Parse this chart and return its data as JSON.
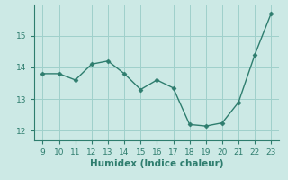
{
  "x": [
    9,
    10,
    11,
    12,
    13,
    14,
    15,
    16,
    17,
    18,
    19,
    20,
    21,
    22,
    23
  ],
  "y": [
    13.8,
    13.8,
    13.6,
    14.1,
    14.2,
    13.8,
    13.3,
    13.6,
    13.35,
    12.2,
    12.15,
    12.25,
    12.9,
    14.4,
    15.7
  ],
  "line_color": "#2e7d6e",
  "marker": "D",
  "marker_size": 2.5,
  "background_color": "#cce9e5",
  "grid_color": "#9fd0cb",
  "xlabel": "Humidex (Indice chaleur)",
  "xlim": [
    8.5,
    23.5
  ],
  "ylim": [
    11.7,
    15.95
  ],
  "xticks": [
    9,
    10,
    11,
    12,
    13,
    14,
    15,
    16,
    17,
    18,
    19,
    20,
    21,
    22,
    23
  ],
  "yticks": [
    12,
    13,
    14,
    15
  ],
  "tick_fontsize": 6.5,
  "xlabel_fontsize": 7.5,
  "linewidth": 1.0,
  "spine_color": "#2e7d6e"
}
